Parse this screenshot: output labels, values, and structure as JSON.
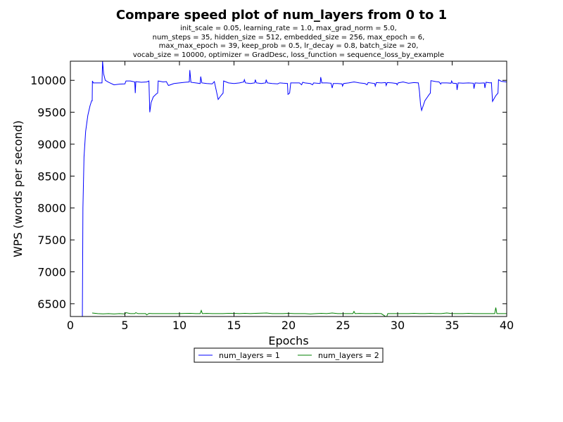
{
  "chart_data": {
    "type": "line",
    "title": "Compare speed plot of num_layers from 0 to 1",
    "subtitle_lines": [
      "init_scale = 0.05, learning_rate = 1.0, max_grad_norm = 5.0,",
      "num_steps = 35, hidden_size = 512, embedded_size = 256, max_epoch = 6,",
      "max_max_epoch = 39, keep_prob = 0.5, lr_decay = 0.8, batch_size = 20,",
      "vocab_size = 10000, optimizer = GradDesc, loss_function = sequence_loss_by_example"
    ],
    "xlabel": "Epochs",
    "ylabel": "WPS (words per second)",
    "xlim": [
      0,
      40
    ],
    "ylim": [
      6300,
      10300
    ],
    "xticks": [
      0,
      5,
      10,
      15,
      20,
      25,
      30,
      35,
      40
    ],
    "yticks": [
      6500,
      7000,
      7500,
      8000,
      8500,
      9000,
      9500,
      10000
    ],
    "grid": false,
    "legend_position": "below",
    "series": [
      {
        "name": "num_layers = 1",
        "color": "#0000ff",
        "points": [
          [
            1.1,
            6300
          ],
          [
            1.15,
            8000
          ],
          [
            1.25,
            8800
          ],
          [
            1.4,
            9200
          ],
          [
            1.6,
            9450
          ],
          [
            1.8,
            9600
          ],
          [
            1.95,
            9680
          ],
          [
            2.0,
            9680
          ],
          [
            2.02,
            9990
          ],
          [
            2.1,
            9960
          ],
          [
            2.5,
            9960
          ],
          [
            2.9,
            9960
          ],
          [
            2.95,
            10300
          ],
          [
            3.05,
            10100
          ],
          [
            3.2,
            10000
          ],
          [
            3.5,
            9970
          ],
          [
            4.0,
            9930
          ],
          [
            4.5,
            9940
          ],
          [
            5.0,
            9945
          ],
          [
            5.1,
            9990
          ],
          [
            5.5,
            9990
          ],
          [
            5.9,
            9975
          ],
          [
            5.95,
            9800
          ],
          [
            6.0,
            9980
          ],
          [
            6.5,
            9970
          ],
          [
            7.0,
            9975
          ],
          [
            7.2,
            9990
          ],
          [
            7.28,
            9500
          ],
          [
            7.4,
            9650
          ],
          [
            7.6,
            9740
          ],
          [
            7.9,
            9790
          ],
          [
            8.0,
            9800
          ],
          [
            8.05,
            9990
          ],
          [
            8.5,
            9975
          ],
          [
            8.8,
            9980
          ],
          [
            8.95,
            9930
          ],
          [
            9.0,
            9920
          ],
          [
            9.5,
            9950
          ],
          [
            10.0,
            9960
          ],
          [
            10.5,
            9970
          ],
          [
            10.9,
            9975
          ],
          [
            10.95,
            10160
          ],
          [
            11.05,
            9970
          ],
          [
            11.5,
            9960
          ],
          [
            11.9,
            9950
          ],
          [
            11.95,
            10060
          ],
          [
            12.05,
            9960
          ],
          [
            12.5,
            9950
          ],
          [
            13.0,
            9945
          ],
          [
            13.2,
            9980
          ],
          [
            13.4,
            9820
          ],
          [
            13.55,
            9700
          ],
          [
            13.8,
            9760
          ],
          [
            14.0,
            9800
          ],
          [
            14.05,
            9990
          ],
          [
            14.5,
            9960
          ],
          [
            15.0,
            9950
          ],
          [
            15.5,
            9960
          ],
          [
            15.9,
            9975
          ],
          [
            15.95,
            10010
          ],
          [
            16.05,
            9960
          ],
          [
            16.5,
            9950
          ],
          [
            16.9,
            9960
          ],
          [
            16.95,
            10010
          ],
          [
            17.05,
            9960
          ],
          [
            17.5,
            9950
          ],
          [
            17.9,
            9960
          ],
          [
            17.95,
            10010
          ],
          [
            18.05,
            9960
          ],
          [
            18.5,
            9950
          ],
          [
            19.0,
            9945
          ],
          [
            19.2,
            9960
          ],
          [
            19.5,
            9955
          ],
          [
            19.9,
            9950
          ],
          [
            19.95,
            9780
          ],
          [
            20.1,
            9800
          ],
          [
            20.2,
            9960
          ],
          [
            20.5,
            9960
          ],
          [
            21.0,
            9960
          ],
          [
            21.2,
            9930
          ],
          [
            21.3,
            9970
          ],
          [
            21.5,
            9960
          ],
          [
            22.0,
            9950
          ],
          [
            22.2,
            9930
          ],
          [
            22.3,
            9960
          ],
          [
            22.9,
            9950
          ],
          [
            22.95,
            10050
          ],
          [
            23.05,
            9960
          ],
          [
            23.5,
            9960
          ],
          [
            23.9,
            9955
          ],
          [
            24.0,
            9880
          ],
          [
            24.1,
            9950
          ],
          [
            24.5,
            9950
          ],
          [
            24.9,
            9945
          ],
          [
            24.95,
            9910
          ],
          [
            25.05,
            9950
          ],
          [
            25.5,
            9960
          ],
          [
            26.0,
            9975
          ],
          [
            26.5,
            9960
          ],
          [
            27.0,
            9950
          ],
          [
            27.2,
            9930
          ],
          [
            27.3,
            9965
          ],
          [
            27.9,
            9950
          ],
          [
            27.95,
            9910
          ],
          [
            28.05,
            9965
          ],
          [
            28.5,
            9960
          ],
          [
            28.9,
            9965
          ],
          [
            28.95,
            9920
          ],
          [
            29.05,
            9965
          ],
          [
            29.5,
            9960
          ],
          [
            29.9,
            9950
          ],
          [
            29.95,
            9930
          ],
          [
            30.05,
            9960
          ],
          [
            30.5,
            9975
          ],
          [
            31.0,
            9955
          ],
          [
            31.5,
            9965
          ],
          [
            31.9,
            9960
          ],
          [
            32.0,
            9830
          ],
          [
            32.1,
            9620
          ],
          [
            32.2,
            9530
          ],
          [
            32.5,
            9680
          ],
          [
            32.9,
            9780
          ],
          [
            33.0,
            9800
          ],
          [
            33.05,
            9995
          ],
          [
            33.5,
            9980
          ],
          [
            33.8,
            9975
          ],
          [
            33.95,
            9940
          ],
          [
            34.0,
            9960
          ],
          [
            34.5,
            9960
          ],
          [
            34.9,
            9955
          ],
          [
            34.95,
            9990
          ],
          [
            35.05,
            9955
          ],
          [
            35.4,
            9950
          ],
          [
            35.45,
            9850
          ],
          [
            35.55,
            9960
          ],
          [
            36.0,
            9955
          ],
          [
            36.5,
            9960
          ],
          [
            36.95,
            9955
          ],
          [
            37.0,
            9870
          ],
          [
            37.1,
            9960
          ],
          [
            37.5,
            9955
          ],
          [
            37.95,
            9960
          ],
          [
            38.0,
            9880
          ],
          [
            38.1,
            9970
          ],
          [
            38.5,
            9960
          ],
          [
            38.6,
            9965
          ],
          [
            38.7,
            9670
          ],
          [
            39.0,
            9760
          ],
          [
            39.2,
            9800
          ],
          [
            39.25,
            10010
          ],
          [
            39.5,
            9985
          ],
          [
            40.0,
            9975
          ]
        ]
      },
      {
        "name": "num_layers = 2",
        "color": "#008000",
        "points": [
          [
            2.0,
            6355
          ],
          [
            2.5,
            6345
          ],
          [
            3.0,
            6342
          ],
          [
            3.5,
            6345
          ],
          [
            4.0,
            6340
          ],
          [
            4.5,
            6345
          ],
          [
            5.0,
            6340
          ],
          [
            5.1,
            6360
          ],
          [
            5.5,
            6345
          ],
          [
            5.9,
            6345
          ],
          [
            6.0,
            6360
          ],
          [
            6.2,
            6345
          ],
          [
            6.9,
            6345
          ],
          [
            7.0,
            6325
          ],
          [
            7.2,
            6348
          ],
          [
            7.5,
            6345
          ],
          [
            8.0,
            6345
          ],
          [
            8.5,
            6345
          ],
          [
            9.0,
            6345
          ],
          [
            9.5,
            6345
          ],
          [
            10.0,
            6345
          ],
          [
            10.5,
            6348
          ],
          [
            11.0,
            6350
          ],
          [
            11.5,
            6345
          ],
          [
            11.9,
            6345
          ],
          [
            12.0,
            6395
          ],
          [
            12.1,
            6345
          ],
          [
            12.5,
            6348
          ],
          [
            13.0,
            6345
          ],
          [
            13.5,
            6345
          ],
          [
            14.0,
            6345
          ],
          [
            14.5,
            6350
          ],
          [
            15.0,
            6350
          ],
          [
            15.5,
            6345
          ],
          [
            16.0,
            6350
          ],
          [
            16.5,
            6345
          ],
          [
            17.0,
            6350
          ],
          [
            17.5,
            6352
          ],
          [
            18.0,
            6355
          ],
          [
            18.5,
            6345
          ],
          [
            19.0,
            6345
          ],
          [
            19.5,
            6345
          ],
          [
            20.0,
            6350
          ],
          [
            20.5,
            6345
          ],
          [
            21.0,
            6345
          ],
          [
            21.5,
            6345
          ],
          [
            22.0,
            6340
          ],
          [
            22.5,
            6345
          ],
          [
            23.0,
            6350
          ],
          [
            23.5,
            6345
          ],
          [
            24.0,
            6355
          ],
          [
            24.5,
            6345
          ],
          [
            25.0,
            6345
          ],
          [
            25.5,
            6345
          ],
          [
            25.9,
            6345
          ],
          [
            26.0,
            6380
          ],
          [
            26.1,
            6345
          ],
          [
            26.5,
            6348
          ],
          [
            27.0,
            6345
          ],
          [
            27.5,
            6345
          ],
          [
            28.0,
            6348
          ],
          [
            28.5,
            6345
          ],
          [
            28.9,
            6300
          ],
          [
            29.0,
            6300
          ],
          [
            29.1,
            6345
          ],
          [
            29.5,
            6345
          ],
          [
            30.0,
            6345
          ],
          [
            30.5,
            6345
          ],
          [
            31.0,
            6345
          ],
          [
            31.5,
            6350
          ],
          [
            32.0,
            6345
          ],
          [
            32.5,
            6345
          ],
          [
            33.0,
            6350
          ],
          [
            33.5,
            6345
          ],
          [
            34.0,
            6345
          ],
          [
            34.5,
            6355
          ],
          [
            35.0,
            6345
          ],
          [
            35.5,
            6345
          ],
          [
            36.0,
            6345
          ],
          [
            36.5,
            6350
          ],
          [
            37.0,
            6345
          ],
          [
            37.5,
            6345
          ],
          [
            38.0,
            6345
          ],
          [
            38.5,
            6345
          ],
          [
            38.9,
            6345
          ],
          [
            39.0,
            6440
          ],
          [
            39.1,
            6345
          ],
          [
            39.5,
            6345
          ],
          [
            40.0,
            6345
          ]
        ]
      }
    ]
  }
}
